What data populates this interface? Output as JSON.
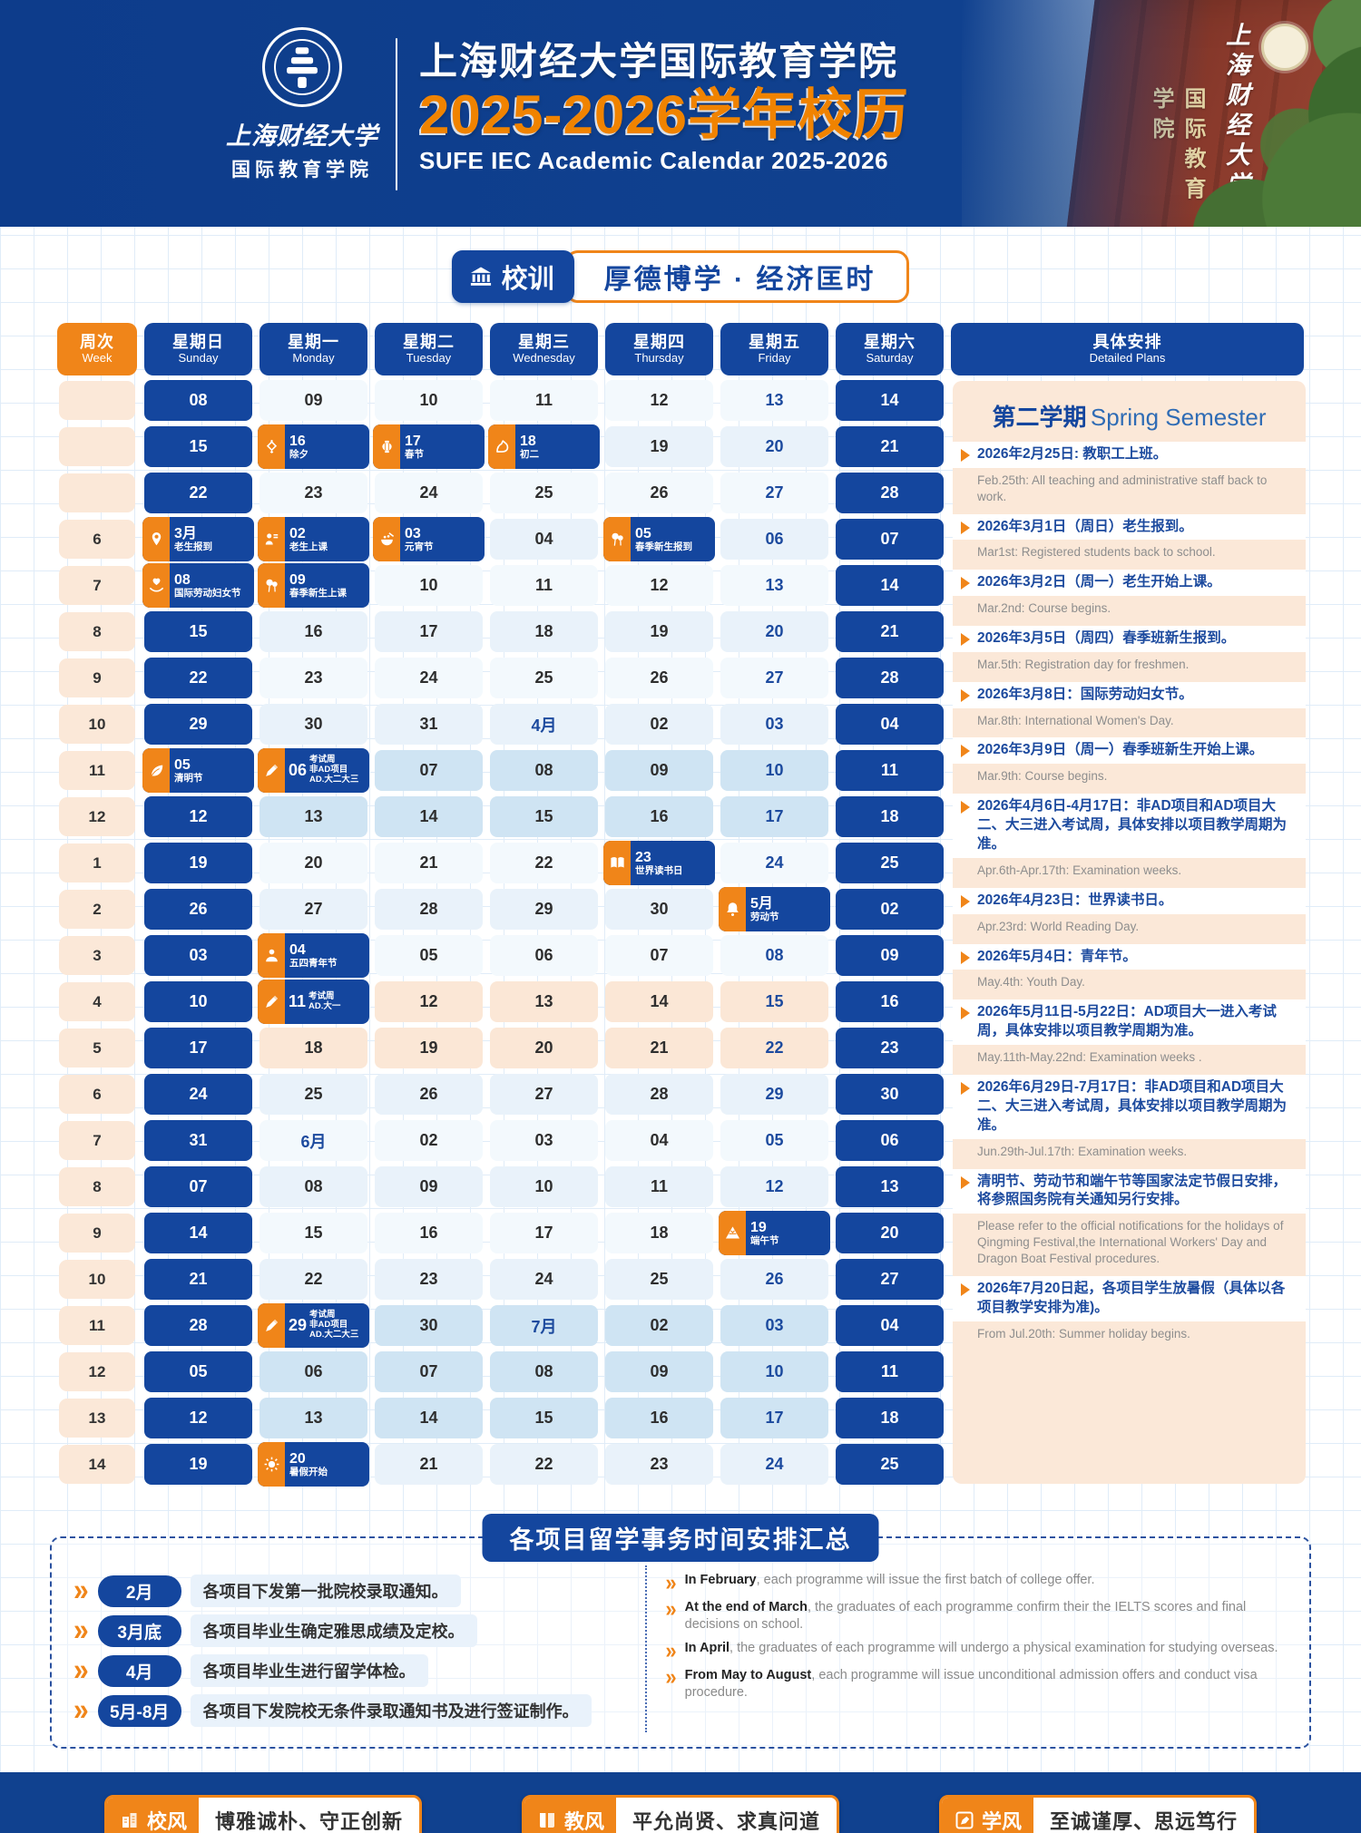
{
  "header": {
    "logo_university": "上海财经大学",
    "logo_college": "国际教育学院",
    "title_cn": "上海财经大学国际教育学院",
    "title_year": "2025-2026学年校历",
    "title_en": "SUFE IEC Academic Calendar 2025-2026",
    "photo_text_script": "上海财经大学",
    "photo_text_vertical": "国际教育学院"
  },
  "motto": {
    "label": "校训",
    "text": "厚德博学 · 经济匡时"
  },
  "colors": {
    "deep_blue": "#10418f",
    "pill_blue": "#14469e",
    "orange": "#f08519",
    "friday_blue": "#1c4a9e",
    "peach": "#fbe8d8",
    "exam_blue": "#cfe4f3",
    "exam_peach": "#fbe7d6"
  },
  "calendar": {
    "week_header": {
      "cn": "周次",
      "en": "Week"
    },
    "day_headers": [
      {
        "cn": "星期日",
        "en": "Sunday"
      },
      {
        "cn": "星期一",
        "en": "Monday"
      },
      {
        "cn": "星期二",
        "en": "Tuesday"
      },
      {
        "cn": "星期三",
        "en": "Wednesday"
      },
      {
        "cn": "星期四",
        "en": "Thursday"
      },
      {
        "cn": "星期五",
        "en": "Friday"
      },
      {
        "cn": "星期六",
        "en": "Saturday"
      }
    ],
    "plans_header": {
      "cn": "具体安排",
      "en": "Detailed Plans"
    },
    "rows": [
      {
        "w": "",
        "tint": "",
        "days": [
          {
            "t": "08"
          },
          {
            "t": "09"
          },
          {
            "t": "10"
          },
          {
            "t": "11"
          },
          {
            "t": "12"
          },
          {
            "t": "13"
          },
          {
            "t": "14"
          }
        ]
      },
      {
        "w": "",
        "tint": "",
        "days": [
          {
            "t": "15"
          },
          {
            "e": {
              "n": "16",
              "l": [
                "除夕"
              ],
              "i": "chinese-knot-icon",
              "y": "stack"
            }
          },
          {
            "e": {
              "n": "17",
              "l": [
                "春节"
              ],
              "i": "lantern-icon",
              "y": "stack"
            }
          },
          {
            "e": {
              "n": "18",
              "l": [
                "初二"
              ],
              "i": "zodiac-icon",
              "y": "stack"
            }
          },
          {
            "t": "19"
          },
          {
            "t": "20"
          },
          {
            "t": "21"
          }
        ]
      },
      {
        "w": "",
        "tint": "",
        "days": [
          {
            "t": "22"
          },
          {
            "t": "23"
          },
          {
            "t": "24"
          },
          {
            "t": "25"
          },
          {
            "t": "26"
          },
          {
            "t": "27"
          },
          {
            "t": "28"
          }
        ]
      },
      {
        "w": "6",
        "tint": "",
        "days": [
          {
            "e": {
              "n": "3月",
              "l": [
                "老生报到"
              ],
              "i": "location-pin-icon",
              "y": "stack"
            }
          },
          {
            "e": {
              "n": "02",
              "l": [
                "老生上课"
              ],
              "i": "student-icon",
              "y": "stack"
            }
          },
          {
            "e": {
              "n": "03",
              "l": [
                "元宵节"
              ],
              "i": "tangyuan-bowl-icon",
              "y": "stack"
            }
          },
          {
            "t": "04"
          },
          {
            "e": {
              "n": "05",
              "l": [
                "春季新生报到"
              ],
              "i": "balloons-icon",
              "y": "stack"
            }
          },
          {
            "t": "06"
          },
          {
            "t": "07"
          }
        ]
      },
      {
        "w": "7",
        "tint": "",
        "days": [
          {
            "e": {
              "n": "08",
              "l": [
                "国际劳动妇女节"
              ],
              "i": "heart-hands-icon",
              "y": "stack"
            }
          },
          {
            "e": {
              "n": "09",
              "l": [
                "春季新生上课"
              ],
              "i": "balloons-icon",
              "y": "stack"
            }
          },
          {
            "t": "10"
          },
          {
            "t": "11"
          },
          {
            "t": "12"
          },
          {
            "t": "13"
          },
          {
            "t": "14"
          }
        ]
      },
      {
        "w": "8",
        "tint": "",
        "days": [
          {
            "t": "15"
          },
          {
            "t": "16"
          },
          {
            "t": "17"
          },
          {
            "t": "18"
          },
          {
            "t": "19"
          },
          {
            "t": "20"
          },
          {
            "t": "21"
          }
        ]
      },
      {
        "w": "9",
        "tint": "",
        "days": [
          {
            "t": "22"
          },
          {
            "t": "23"
          },
          {
            "t": "24"
          },
          {
            "t": "25"
          },
          {
            "t": "26"
          },
          {
            "t": "27"
          },
          {
            "t": "28"
          }
        ]
      },
      {
        "w": "10",
        "tint": "",
        "days": [
          {
            "t": "29"
          },
          {
            "t": "30"
          },
          {
            "t": "31"
          },
          {
            "t": "4月",
            "m": 1
          },
          {
            "t": "02"
          },
          {
            "t": "03"
          },
          {
            "t": "04"
          }
        ]
      },
      {
        "w": "11",
        "tint": "blue",
        "days": [
          {
            "e": {
              "n": "05",
              "l": [
                "清明节"
              ],
              "i": "leaf-icon",
              "y": "stack"
            }
          },
          {
            "e": {
              "n": "06",
              "l": [
                "考试周",
                "非AD项目",
                "AD.大二大三"
              ],
              "i": "pen-icon",
              "y": "side"
            }
          },
          {
            "t": "07"
          },
          {
            "t": "08"
          },
          {
            "t": "09"
          },
          {
            "t": "10"
          },
          {
            "t": "11"
          }
        ]
      },
      {
        "w": "12",
        "tint": "blue",
        "days": [
          {
            "t": "12"
          },
          {
            "t": "13"
          },
          {
            "t": "14"
          },
          {
            "t": "15"
          },
          {
            "t": "16"
          },
          {
            "t": "17"
          },
          {
            "t": "18"
          }
        ]
      },
      {
        "w": "1",
        "tint": "",
        "days": [
          {
            "t": "19"
          },
          {
            "t": "20"
          },
          {
            "t": "21"
          },
          {
            "t": "22"
          },
          {
            "e": {
              "n": "23",
              "l": [
                "世界读书日"
              ],
              "i": "book-icon",
              "y": "stack"
            }
          },
          {
            "t": "24"
          },
          {
            "t": "25"
          }
        ]
      },
      {
        "w": "2",
        "tint": "",
        "days": [
          {
            "t": "26"
          },
          {
            "t": "27"
          },
          {
            "t": "28"
          },
          {
            "t": "29"
          },
          {
            "t": "30"
          },
          {
            "e": {
              "n": "5月",
              "l": [
                "劳动节"
              ],
              "i": "bell-icon",
              "y": "stack"
            }
          },
          {
            "t": "02"
          }
        ]
      },
      {
        "w": "3",
        "tint": "",
        "days": [
          {
            "t": "03"
          },
          {
            "e": {
              "n": "04",
              "l": [
                "五四青年节"
              ],
              "i": "person-icon",
              "y": "stack"
            }
          },
          {
            "t": "05"
          },
          {
            "t": "06"
          },
          {
            "t": "07"
          },
          {
            "t": "08"
          },
          {
            "t": "09"
          }
        ]
      },
      {
        "w": "4",
        "tint": "peach",
        "days": [
          {
            "t": "10"
          },
          {
            "e": {
              "n": "11",
              "l": [
                "考试周",
                "AD.大一"
              ],
              "i": "pen-icon",
              "y": "side"
            }
          },
          {
            "t": "12"
          },
          {
            "t": "13"
          },
          {
            "t": "14"
          },
          {
            "t": "15"
          },
          {
            "t": "16"
          }
        ]
      },
      {
        "w": "5",
        "tint": "peach",
        "days": [
          {
            "t": "17"
          },
          {
            "t": "18"
          },
          {
            "t": "19"
          },
          {
            "t": "20"
          },
          {
            "t": "21"
          },
          {
            "t": "22"
          },
          {
            "t": "23"
          }
        ]
      },
      {
        "w": "6",
        "tint": "",
        "days": [
          {
            "t": "24"
          },
          {
            "t": "25"
          },
          {
            "t": "26"
          },
          {
            "t": "27"
          },
          {
            "t": "28"
          },
          {
            "t": "29"
          },
          {
            "t": "30"
          }
        ]
      },
      {
        "w": "7",
        "tint": "",
        "days": [
          {
            "t": "31"
          },
          {
            "t": "6月",
            "m": 1
          },
          {
            "t": "02"
          },
          {
            "t": "03"
          },
          {
            "t": "04"
          },
          {
            "t": "05"
          },
          {
            "t": "06"
          }
        ]
      },
      {
        "w": "8",
        "tint": "",
        "days": [
          {
            "t": "07"
          },
          {
            "t": "08"
          },
          {
            "t": "09"
          },
          {
            "t": "10"
          },
          {
            "t": "11"
          },
          {
            "t": "12"
          },
          {
            "t": "13"
          }
        ]
      },
      {
        "w": "9",
        "tint": "",
        "days": [
          {
            "t": "14"
          },
          {
            "t": "15"
          },
          {
            "t": "16"
          },
          {
            "t": "17"
          },
          {
            "t": "18"
          },
          {
            "e": {
              "n": "19",
              "l": [
                "端午节"
              ],
              "i": "zongzi-icon",
              "y": "stack"
            }
          },
          {
            "t": "20"
          }
        ]
      },
      {
        "w": "10",
        "tint": "",
        "days": [
          {
            "t": "21"
          },
          {
            "t": "22"
          },
          {
            "t": "23"
          },
          {
            "t": "24"
          },
          {
            "t": "25"
          },
          {
            "t": "26"
          },
          {
            "t": "27"
          }
        ]
      },
      {
        "w": "11",
        "tint": "blue",
        "days": [
          {
            "t": "28"
          },
          {
            "e": {
              "n": "29",
              "l": [
                "考试周",
                "非AD项目",
                "AD.大二大三"
              ],
              "i": "pen-icon",
              "y": "side"
            }
          },
          {
            "t": "30"
          },
          {
            "t": "7月",
            "m": 1
          },
          {
            "t": "02"
          },
          {
            "t": "03"
          },
          {
            "t": "04"
          }
        ]
      },
      {
        "w": "12",
        "tint": "blue",
        "days": [
          {
            "t": "05"
          },
          {
            "t": "06"
          },
          {
            "t": "07"
          },
          {
            "t": "08"
          },
          {
            "t": "09"
          },
          {
            "t": "10"
          },
          {
            "t": "11"
          }
        ]
      },
      {
        "w": "13",
        "tint": "blue",
        "days": [
          {
            "t": "12"
          },
          {
            "t": "13"
          },
          {
            "t": "14"
          },
          {
            "t": "15"
          },
          {
            "t": "16"
          },
          {
            "t": "17"
          },
          {
            "t": "18"
          }
        ]
      },
      {
        "w": "14",
        "tint": "",
        "days": [
          {
            "t": "19"
          },
          {
            "e": {
              "n": "20",
              "l": [
                "暑假开始"
              ],
              "i": "sun-icon",
              "y": "stack"
            }
          },
          {
            "t": "21"
          },
          {
            "t": "22"
          },
          {
            "t": "23"
          },
          {
            "t": "24"
          },
          {
            "t": "25"
          }
        ]
      }
    ]
  },
  "plans": {
    "semester_cn": "第二学期",
    "semester_en": "Spring Semester",
    "items": [
      {
        "cn": "2026年2月25日: 教职工上班。",
        "en": "Feb.25th: All teaching and administrative staff back to work."
      },
      {
        "cn": "2026年3月1日（周日）老生报到。",
        "en": "Mar1st: Registered students back to school."
      },
      {
        "cn": "2026年3月2日（周一）老生开始上课。",
        "en": "Mar.2nd: Course begins."
      },
      {
        "cn": "2026年3月5日（周四）春季班新生报到。",
        "en": "Mar.5th: Registration day for freshmen."
      },
      {
        "cn": "2026年3月8日：国际劳动妇女节。",
        "en": "Mar.8th:  International Women's Day."
      },
      {
        "cn": "2026年3月9日（周一）春季班新生开始上课。",
        "en": "Mar.9th: Course begins."
      },
      {
        "cn": "2026年4月6日-4月17日：非AD项目和AD项目大二、大三进入考试周，具体安排以项目教学周期为准。",
        "en": "Apr.6th-Apr.17th:  Examination weeks."
      },
      {
        "cn": "2026年4月23日：世界读书日。",
        "en": "Apr.23rd:  World Reading Day."
      },
      {
        "cn": "2026年5月4日：青年节。",
        "en": "May.4th:  Youth Day."
      },
      {
        "cn": "2026年5月11日-5月22日：AD项目大一进入考试周，具体安排以项目教学周期为准。",
        "en": "May.11th-May.22nd:  Examination weeks ."
      },
      {
        "cn": "2026年6月29日-7月17日：非AD项目和AD项目大二、大三进入考试周，具体安排以项目教学周期为准。",
        "en": "Jun.29th-Jul.17th:  Examination weeks."
      },
      {
        "cn": "清明节、劳动节和端午节等国家法定节假日安排，将参照国务院有关通知另行安排。",
        "en": "Please refer to the official notifications for the holidays of Qingming Festival,the International Workers' Day and Dragon Boat Festival procedures."
      },
      {
        "cn": "2026年7月20日起，各项目学生放暑假（具体以各项目教学安排为准)。",
        "en": "From Jul.20th:  Summer holiday begins."
      }
    ]
  },
  "summary": {
    "title": "各项目留学事务时间安排汇总",
    "left": [
      {
        "tag": "2月",
        "text": "各项目下发第一批院校录取通知。"
      },
      {
        "tag": "3月底",
        "text": "各项目毕业生确定雅思成绩及定校。"
      },
      {
        "tag": "4月",
        "text": "各项目毕业生进行留学体检。"
      },
      {
        "tag": "5月-8月",
        "text": "各项目下发院校无条件录取通知书及进行签证制作。"
      }
    ],
    "right": [
      {
        "bold": "In February",
        "rest": ", each programme will issue the first batch of college offer."
      },
      {
        "bold": "At the end of March",
        "rest": ", the graduates of each programme confirm their the IELTS scores and  final decisions on school."
      },
      {
        "bold": "In April",
        "rest": ", the graduates of each programme will undergo a physical examination for studying overseas."
      },
      {
        "bold": "From May to August",
        "rest": ", each programme will issue unconditional admission offers and conduct visa procedure."
      }
    ]
  },
  "footer": {
    "items": [
      {
        "icon": "building-icon",
        "label": "校风",
        "text": "博雅诚朴、守正创新"
      },
      {
        "icon": "open-book-icon",
        "label": "教风",
        "text": "平允尚贤、求真问道"
      },
      {
        "icon": "pen-box-icon",
        "label": "学风",
        "text": "至诚谨厚、思远笃行"
      }
    ]
  }
}
